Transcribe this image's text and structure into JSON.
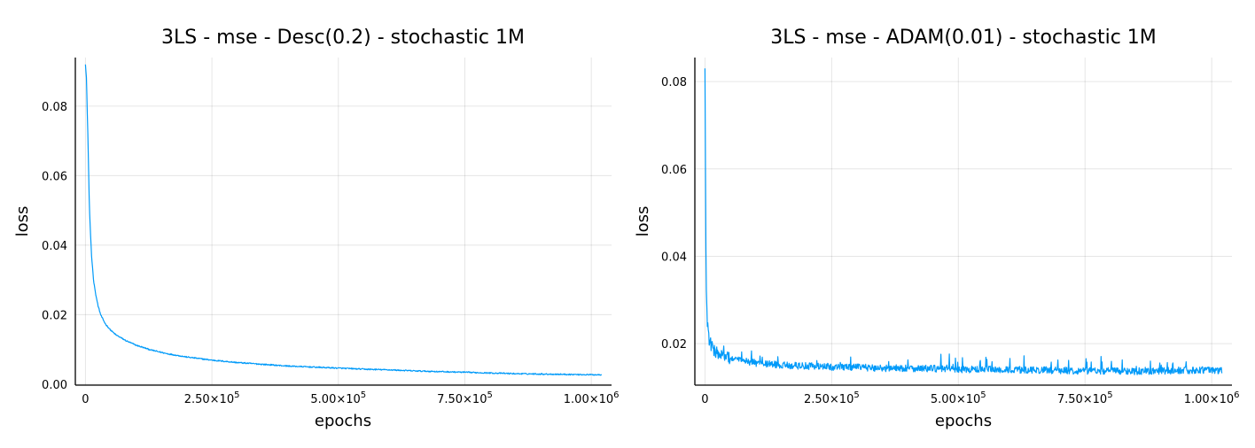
{
  "charts": [
    {
      "title": "3LS - mse - Desc(0.2) - stochastic 1M",
      "xlabel": "epochs",
      "ylabel": "loss",
      "yticks": [
        "0.00",
        "0.02",
        "0.04",
        "0.06",
        "0.08"
      ],
      "xticks": [
        {
          "mantissa": "0",
          "exp": ""
        },
        {
          "mantissa": "2.50×10",
          "exp": "5"
        },
        {
          "mantissa": "5.00×10",
          "exp": "5"
        },
        {
          "mantissa": "7.50×10",
          "exp": "5"
        },
        {
          "mantissa": "1.00×10",
          "exp": "6"
        }
      ]
    },
    {
      "title": "3LS - mse - ADAM(0.01) - stochastic 1M",
      "xlabel": "epochs",
      "ylabel": "loss",
      "yticks": [
        "0.02",
        "0.04",
        "0.06",
        "0.08"
      ],
      "xticks": [
        {
          "mantissa": "0",
          "exp": ""
        },
        {
          "mantissa": "2.50×10",
          "exp": "5"
        },
        {
          "mantissa": "5.00×10",
          "exp": "5"
        },
        {
          "mantissa": "7.50×10",
          "exp": "5"
        },
        {
          "mantissa": "1.00×10",
          "exp": "6"
        }
      ]
    }
  ],
  "chart_data": [
    {
      "type": "line",
      "title": "3LS - mse - Desc(0.2) - stochastic 1M",
      "xlabel": "epochs",
      "ylabel": "loss",
      "xlim": [
        -20000,
        1040000
      ],
      "ylim": [
        -0.0003,
        0.094
      ],
      "xticks": [
        0,
        250000,
        500000,
        750000,
        1000000
      ],
      "yticks": [
        0,
        0.02,
        0.04,
        0.06,
        0.08
      ],
      "grid": true,
      "legend": "none",
      "color": "#009af9",
      "series": [
        {
          "x": [
            0,
            2000,
            5000,
            8000,
            12000,
            16000,
            20000,
            25000,
            30000,
            35000,
            40000,
            50000,
            60000,
            80000,
            100000,
            130000,
            160000,
            200000,
            250000,
            300000,
            350000,
            400000,
            450000,
            500000,
            550000,
            600000,
            650000,
            700000,
            750000,
            800000,
            850000,
            900000,
            950000,
            1000000,
            1020000
          ],
          "values": [
            0.092,
            0.088,
            0.07,
            0.05,
            0.037,
            0.03,
            0.026,
            0.0225,
            0.02,
            0.0185,
            0.0172,
            0.0155,
            0.0142,
            0.0125,
            0.0112,
            0.0098,
            0.0088,
            0.0078,
            0.0069,
            0.0062,
            0.0057,
            0.0052,
            0.0049,
            0.0046,
            0.0043,
            0.0041,
            0.0038,
            0.0036,
            0.0034,
            0.0032,
            0.003,
            0.0029,
            0.0028,
            0.0027,
            0.0027
          ]
        }
      ]
    },
    {
      "type": "line",
      "title": "3LS - mse - ADAM(0.01) - stochastic 1M",
      "xlabel": "epochs",
      "ylabel": "loss",
      "xlim": [
        -20000,
        1040000
      ],
      "ylim": [
        0.0105,
        0.0855
      ],
      "xticks": [
        0,
        250000,
        500000,
        750000,
        1000000
      ],
      "yticks": [
        0.02,
        0.04,
        0.06,
        0.08
      ],
      "grid": true,
      "legend": "none",
      "color": "#009af9",
      "series": [
        {
          "x": [
            0,
            1500,
            3000,
            5000,
            8000,
            12000,
            20000,
            35000,
            50000,
            75000,
            100000,
            150000,
            200000,
            250000,
            300000,
            350000,
            400000,
            450000,
            500000,
            550000,
            600000,
            650000,
            700000,
            750000,
            800000,
            850000,
            900000,
            950000,
            1000000,
            1020000
          ],
          "values": [
            0.083,
            0.045,
            0.03,
            0.024,
            0.021,
            0.0195,
            0.018,
            0.017,
            0.0165,
            0.016,
            0.0155,
            0.015,
            0.0148,
            0.0146,
            0.0145,
            0.0143,
            0.0143,
            0.0142,
            0.014,
            0.014,
            0.0139,
            0.0139,
            0.0138,
            0.0137,
            0.0137,
            0.0136,
            0.0137,
            0.0138,
            0.0139,
            0.0138
          ]
        }
      ]
    }
  ]
}
